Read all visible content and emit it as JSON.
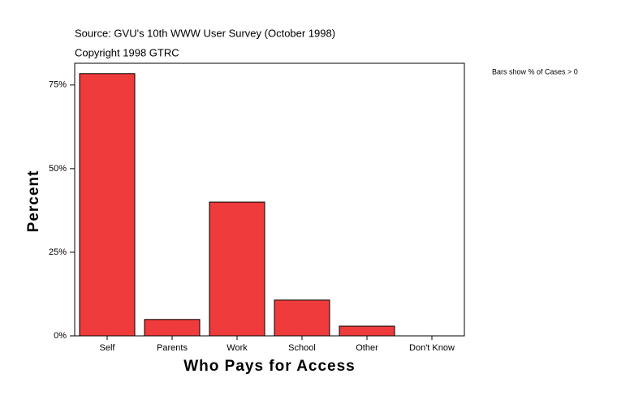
{
  "chart_data": {
    "type": "bar",
    "title": "Source: GVU's 10th WWW User Survey (October 1998)",
    "subtitle": "Copyright 1998 GTRC",
    "annotation": "Bars show % of Cases > 0",
    "x_label": "Who Pays for Access",
    "y_label": "Percent",
    "categories": [
      "Self",
      "Parents",
      "Work",
      "School",
      "Other",
      "Don't Know"
    ],
    "values": [
      78.4,
      4.9,
      40.0,
      10.7,
      2.9,
      0
    ],
    "color": "#ef3b3b",
    "ylim": [
      0,
      81.5
    ],
    "yticks": [
      {
        "value": 0,
        "label": "0%"
      },
      {
        "value": 25,
        "label": "25%"
      },
      {
        "value": 50,
        "label": "50%"
      },
      {
        "value": 75,
        "label": "75%"
      }
    ],
    "grid": false
  }
}
